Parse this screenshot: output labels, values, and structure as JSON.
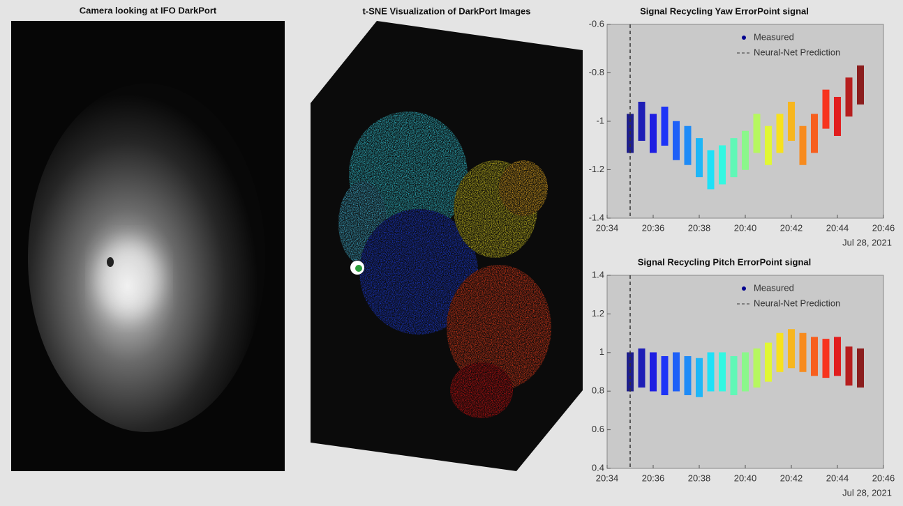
{
  "chart_data": [
    {
      "type": "image",
      "title": "Camera looking at IFO DarkPort"
    },
    {
      "type": "embedding",
      "title": "t-SNE Visualization of DarkPort Images"
    },
    {
      "type": "scatter",
      "title": "Signal Recycling Yaw ErrorPoint signal",
      "x": [
        "20:35:00",
        "20:35:30",
        "20:36:00",
        "20:36:30",
        "20:37:00",
        "20:37:30",
        "20:38:00",
        "20:38:30",
        "20:39:00",
        "20:39:30",
        "20:40:00",
        "20:40:30",
        "20:41:00",
        "20:41:30",
        "20:42:00",
        "20:42:30",
        "20:43:00",
        "20:43:30",
        "20:44:00",
        "20:44:30",
        "20:45:00"
      ],
      "series": [
        {
          "name": "Measured",
          "color": "#00008f",
          "values": [
            -1.05,
            -1.0,
            -1.05,
            -1.02,
            -1.08,
            -1.1,
            -1.15,
            -1.2,
            -1.18,
            -1.15,
            -1.12,
            -1.05,
            -1.1,
            -1.05,
            -1.0,
            -1.1,
            -1.05,
            -0.95,
            -0.98,
            -0.9,
            -0.85
          ]
        }
      ],
      "prediction": {
        "name": "Neural-Net Prediction",
        "x": "20:35",
        "color": "#333333"
      },
      "xlim": [
        "20:34",
        "20:46"
      ],
      "xticks": [
        "20:34",
        "20:36",
        "20:38",
        "20:40",
        "20:42",
        "20:44",
        "20:46"
      ],
      "date_label": "Jul 28, 2021",
      "ylim": [
        -1.4,
        -0.6
      ],
      "yticks": [
        -1.4,
        -1.2,
        -1,
        -0.8,
        -0.6
      ],
      "legend": "upper-right"
    },
    {
      "type": "scatter",
      "title": "Signal Recycling Pitch ErrorPoint signal",
      "x": [
        "20:35:00",
        "20:35:30",
        "20:36:00",
        "20:36:30",
        "20:37:00",
        "20:37:30",
        "20:38:00",
        "20:38:30",
        "20:39:00",
        "20:39:30",
        "20:40:00",
        "20:40:30",
        "20:41:00",
        "20:41:30",
        "20:42:00",
        "20:42:30",
        "20:43:00",
        "20:43:30",
        "20:44:00",
        "20:44:30",
        "20:45:00"
      ],
      "series": [
        {
          "name": "Measured",
          "color": "#00008f",
          "values": [
            0.9,
            0.92,
            0.9,
            0.88,
            0.9,
            0.88,
            0.87,
            0.9,
            0.9,
            0.88,
            0.9,
            0.92,
            0.95,
            1.0,
            1.02,
            1.0,
            0.98,
            0.97,
            0.98,
            0.93,
            0.92
          ]
        }
      ],
      "prediction": {
        "name": "Neural-Net Prediction",
        "x": "20:35",
        "color": "#333333"
      },
      "xlim": [
        "20:34",
        "20:46"
      ],
      "xticks": [
        "20:34",
        "20:36",
        "20:38",
        "20:40",
        "20:42",
        "20:44",
        "20:46"
      ],
      "date_label": "Jul 28, 2021",
      "ylim": [
        0.4,
        1.4
      ],
      "yticks": [
        0.4,
        0.6,
        0.8,
        1,
        1.2,
        1.4
      ],
      "legend": "upper-right"
    }
  ]
}
